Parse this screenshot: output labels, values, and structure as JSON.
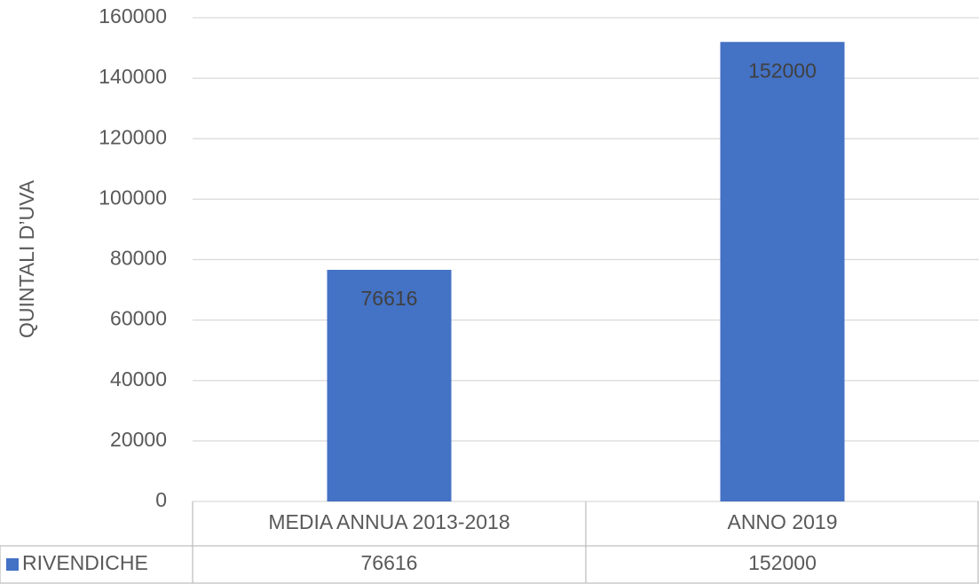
{
  "chart_data": {
    "type": "bar",
    "ylabel": "QUINTALI D’UVA",
    "categories": [
      "MEDIA ANNUA 2013-2018",
      "ANNO 2019"
    ],
    "series": [
      {
        "name": "RIVENDICHE",
        "color": "#4472c4",
        "values": [
          76616,
          152000
        ]
      }
    ],
    "ylim": [
      0,
      160000
    ],
    "yticks": [
      0,
      20000,
      40000,
      60000,
      80000,
      100000,
      120000,
      140000,
      160000
    ],
    "grid": true,
    "data_table": true
  }
}
